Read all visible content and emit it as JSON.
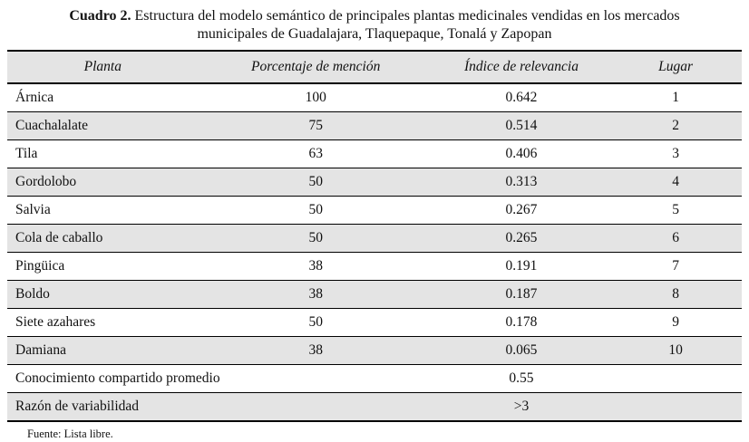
{
  "caption": {
    "label": "Cuadro 2.",
    "text_line1": "Estructura del modelo semántico de principales plantas medicinales vendidas en los mercados",
    "text_line2": "municipales de Guadalajara, Tlaquepaque, Tonalá y Zapopan"
  },
  "table": {
    "columns": [
      "Planta",
      "Porcentaje de mención",
      "Índice de relevancia",
      "Lugar"
    ],
    "rows": [
      {
        "planta": "Árnica",
        "porcentaje": "100",
        "indice": "0.642",
        "lugar": "1"
      },
      {
        "planta": "Cuachalalate",
        "porcentaje": "75",
        "indice": "0.514",
        "lugar": "2"
      },
      {
        "planta": "Tila",
        "porcentaje": "63",
        "indice": "0.406",
        "lugar": "3"
      },
      {
        "planta": "Gordolobo",
        "porcentaje": "50",
        "indice": "0.313",
        "lugar": "4"
      },
      {
        "planta": "Salvia",
        "porcentaje": "50",
        "indice": "0.267",
        "lugar": "5"
      },
      {
        "planta": "Cola de caballo",
        "porcentaje": "50",
        "indice": "0.265",
        "lugar": "6"
      },
      {
        "planta": "Pingüica",
        "porcentaje": "38",
        "indice": "0.191",
        "lugar": "7"
      },
      {
        "planta": "Boldo",
        "porcentaje": "38",
        "indice": "0.187",
        "lugar": "8"
      },
      {
        "planta": "Siete azahares",
        "porcentaje": "50",
        "indice": "0.178",
        "lugar": "9"
      },
      {
        "planta": "Damiana",
        "porcentaje": "38",
        "indice": "0.065",
        "lugar": "10"
      }
    ],
    "summary_rows": [
      {
        "label": "Conocimiento compartido promedio",
        "value": "0.55"
      },
      {
        "label": "Razón de variabilidad",
        "value": ">3"
      }
    ]
  },
  "footer": {
    "source": "Fuente: Lista libre."
  },
  "colors": {
    "row_shade": "#e4e4e4",
    "border": "#000000",
    "text": "#111111",
    "background": "#ffffff"
  }
}
